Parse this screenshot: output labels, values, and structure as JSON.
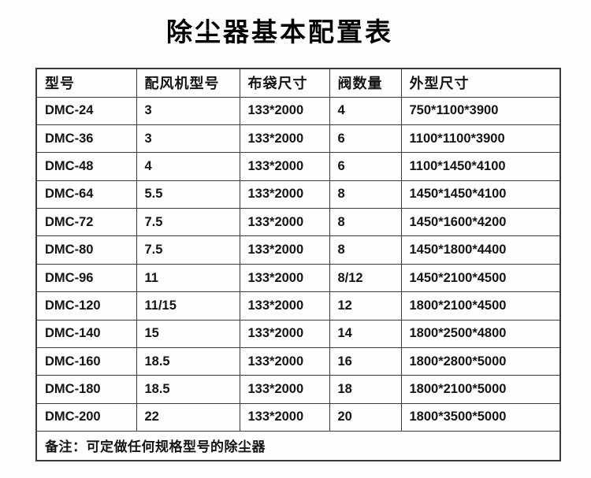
{
  "title": "除尘器基本配置表",
  "table": {
    "column_keys": [
      "model",
      "fan_model",
      "bag_size",
      "valve_count",
      "dimensions"
    ],
    "headers": [
      "型号",
      "配风机型号",
      "布袋尺寸",
      "阀数量",
      "外型尺寸"
    ],
    "rows": [
      [
        "DMC-24",
        "3",
        "133*2000",
        "4",
        "750*1100*3900"
      ],
      [
        "DMC-36",
        "3",
        "133*2000",
        "6",
        "1100*1100*3900"
      ],
      [
        "DMC-48",
        "4",
        "133*2000",
        "6",
        "1100*1450*4100"
      ],
      [
        "DMC-64",
        "5.5",
        "133*2000",
        "8",
        "1450*1450*4100"
      ],
      [
        "DMC-72",
        "7.5",
        "133*2000",
        "8",
        "1450*1600*4200"
      ],
      [
        "DMC-80",
        "7.5",
        "133*2000",
        "8",
        "1450*1800*4400"
      ],
      [
        "DMC-96",
        "11",
        "133*2000",
        "8/12",
        "1450*2100*4500"
      ],
      [
        "DMC-120",
        "11/15",
        "133*2000",
        "12",
        "1800*2100*4500"
      ],
      [
        "DMC-140",
        "15",
        "133*2000",
        "14",
        "1800*2500*4800"
      ],
      [
        "DMC-160",
        "18.5",
        "133*2000",
        "16",
        "1800*2800*5000"
      ],
      [
        "DMC-180",
        "18.5",
        "133*2000",
        "18",
        "1800*2100*5000"
      ],
      [
        "DMC-200",
        "22",
        "133*2000",
        "20",
        "1800*3500*5000"
      ]
    ],
    "footer_note": "备注：可定做任何规格型号的除尘器"
  },
  "colors": {
    "border": "#3a3a3a",
    "text": "#141414",
    "background": "#fdfdfd"
  }
}
